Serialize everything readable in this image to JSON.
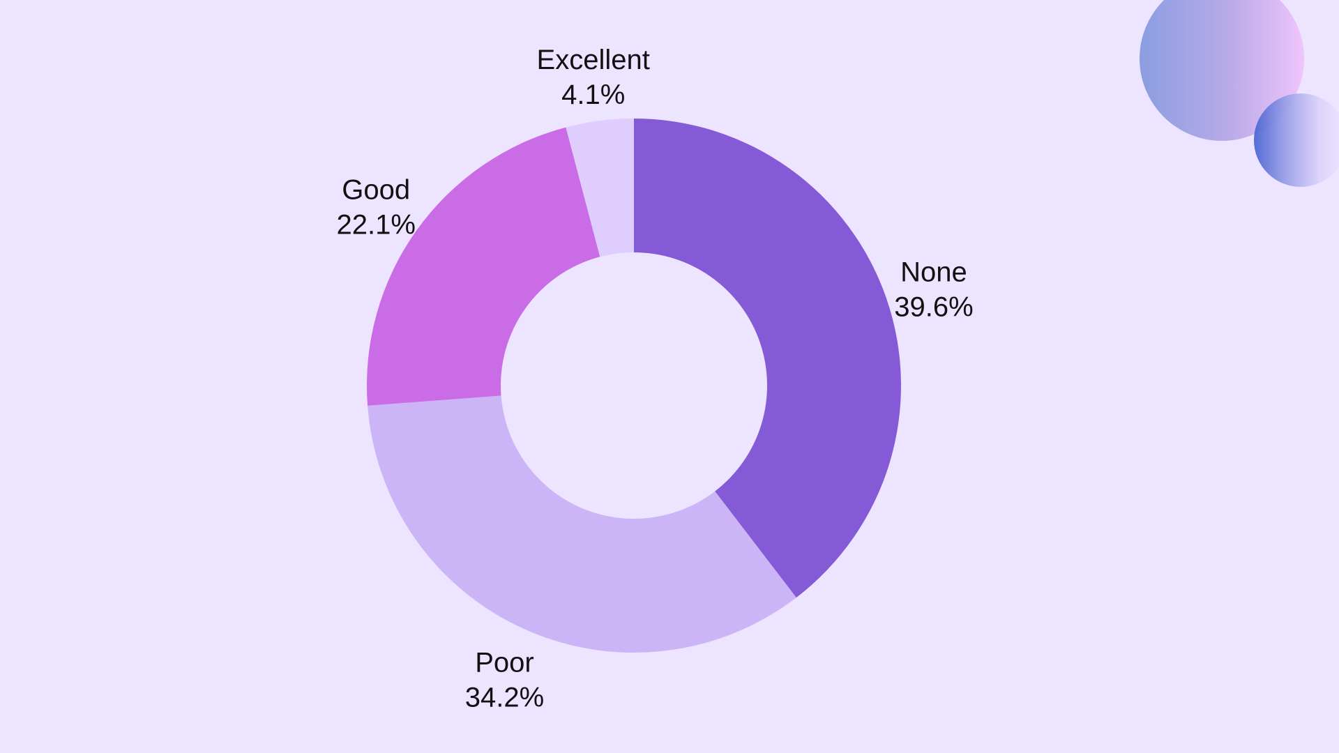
{
  "chart_data": {
    "type": "pie",
    "subtype": "donut",
    "categories": [
      "None",
      "Poor",
      "Good",
      "Excellent"
    ],
    "values": [
      39.6,
      34.2,
      22.1,
      4.1
    ],
    "value_labels": [
      "39.6%",
      "34.2%",
      "22.1%",
      "4.1%"
    ],
    "colors": [
      "#845ad6",
      "#cbb5f6",
      "#c96ce6",
      "#dfcdfd"
    ],
    "start_angle_deg": 0,
    "direction": "clockwise",
    "legend": "none"
  },
  "background_color": "#ede4ff"
}
